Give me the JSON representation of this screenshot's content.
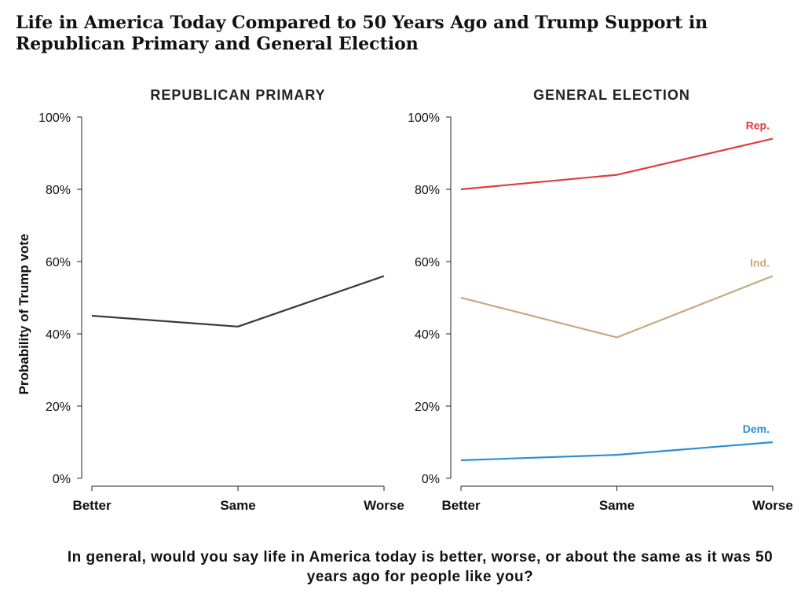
{
  "title": "Life in America Today Compared to 50 Years Ago and Trump Support in Republican Primary and General Election",
  "xlabel": "In general, would you say life in America today is better, worse, or about the same as it was 50 years ago for people like you?",
  "ylabel": "Probability of Trump vote",
  "colors": {
    "Rep.": "#e03c3c",
    "Ind.": "#c8a97e",
    "Dem.": "#2b8fd8",
    "primary": "#3a3a3a",
    "axis": "#222222"
  },
  "chart_data": [
    {
      "type": "line",
      "title": "REPUBLICAN PRIMARY",
      "categories": [
        "Better",
        "Same",
        "Worse"
      ],
      "ylim": [
        0,
        100
      ],
      "yticks": [
        "0%",
        "20%",
        "40%",
        "60%",
        "80%",
        "100%"
      ],
      "ylabel": "Probability of Trump vote",
      "series": [
        {
          "values": [
            45,
            42,
            56
          ]
        }
      ]
    },
    {
      "type": "line",
      "title": "GENERAL ELECTION",
      "categories": [
        "Better",
        "Same",
        "Worse"
      ],
      "ylim": [
        0,
        100
      ],
      "yticks": [
        "0%",
        "20%",
        "40%",
        "60%",
        "80%",
        "100%"
      ],
      "series": [
        {
          "name": "Rep.",
          "values": [
            80,
            84,
            94
          ]
        },
        {
          "name": "Ind.",
          "values": [
            50,
            39,
            56
          ]
        },
        {
          "name": "Dem.",
          "values": [
            5,
            6.5,
            10
          ]
        }
      ]
    }
  ]
}
